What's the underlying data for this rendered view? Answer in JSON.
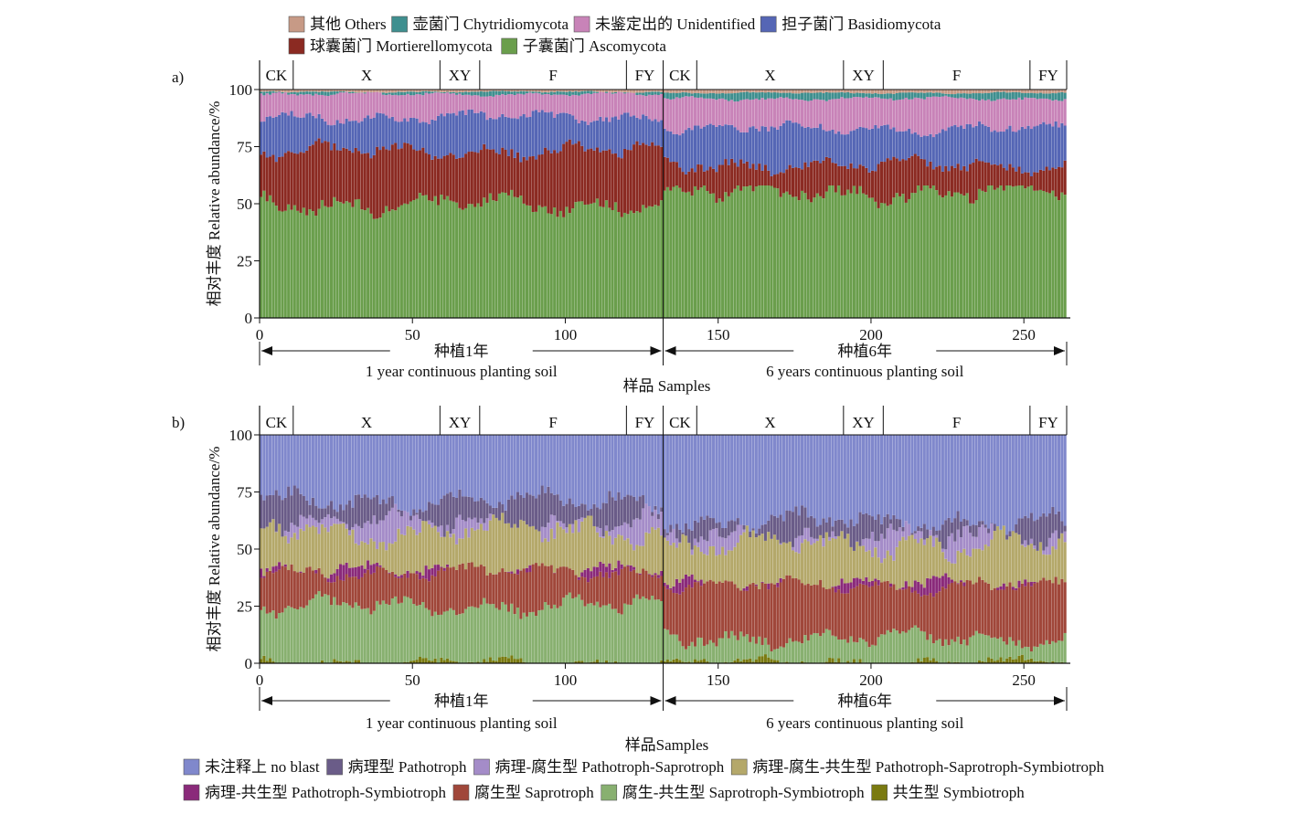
{
  "chart_data": [
    {
      "panel_label": "a)",
      "type": "bar",
      "stacked": true,
      "xlabel": "样品 Samples",
      "ylabel": "相对丰度 Relative abundance/%",
      "ylim": [
        0,
        100
      ],
      "yticks": [
        0,
        25,
        50,
        75,
        100
      ],
      "xlim": [
        0,
        264
      ],
      "xticks": [
        0,
        50,
        100,
        150,
        200,
        250
      ],
      "n_samples": 264,
      "groups": [
        {
          "label": "CK",
          "start": 0,
          "end": 11
        },
        {
          "label": "X",
          "start": 11,
          "end": 59
        },
        {
          "label": "XY",
          "start": 59,
          "end": 72
        },
        {
          "label": "F",
          "start": 72,
          "end": 120
        },
        {
          "label": "FY",
          "start": 120,
          "end": 132
        },
        {
          "label": "CK",
          "start": 132,
          "end": 143
        },
        {
          "label": "X",
          "start": 143,
          "end": 191
        },
        {
          "label": "XY",
          "start": 191,
          "end": 204
        },
        {
          "label": "F",
          "start": 204,
          "end": 252
        },
        {
          "label": "FY",
          "start": 252,
          "end": 264
        }
      ],
      "periods": [
        {
          "zh": "种植1年",
          "en": "1 year continuous planting soil",
          "start": 0,
          "end": 132
        },
        {
          "zh": "种植6年",
          "en": "6 years continuous planting soil",
          "start": 132,
          "end": 264
        }
      ],
      "legend": [
        {
          "name": "其他 Others",
          "color": "#c79a86"
        },
        {
          "name": "壶菌门 Chytridiomycota",
          "color": "#3f8f8f"
        },
        {
          "name": "未鉴定出的 Unidentified",
          "color": "#c883b8"
        },
        {
          "name": "担子菌门 Basidiomycota",
          "color": "#5566b5"
        },
        {
          "name": "球囊菌门 Mortierellomycota",
          "color": "#8b2a22"
        },
        {
          "name": "子囊菌门 Ascomycota",
          "color": "#6a9e4c"
        }
      ],
      "stack_order_bottom_to_top": [
        "子囊菌门 Ascomycota",
        "球囊菌门 Mortierellomycota",
        "担子菌门 Basidiomycota",
        "未鉴定出的 Unidentified",
        "壶菌门 Chytridiomycota",
        "其他 Others"
      ],
      "cumulative_boundaries": [
        {
          "series": "子囊菌门 Ascomycota",
          "period_1yr_mean": 50,
          "period_6yr_mean": 55,
          "range": [
            27,
            58
          ]
        },
        {
          "series": "球囊菌门 Mortierellomycota",
          "period_1yr_mean": 73,
          "period_6yr_mean": 67,
          "range": [
            60,
            84
          ]
        },
        {
          "series": "担子菌门 Basidiomycota",
          "period_1yr_mean": 88,
          "period_6yr_mean": 83,
          "range": [
            76,
            94
          ]
        },
        {
          "series": "未鉴定出的 Unidentified",
          "period_1yr_mean": 98,
          "period_6yr_mean": 96,
          "range": [
            93,
            99
          ]
        },
        {
          "series": "壶菌门 Chytridiomycota",
          "period_1yr_mean": 99,
          "period_6yr_mean": 98.5,
          "range": [
            97,
            99.5
          ]
        },
        {
          "series": "其他 Others",
          "period_1yr_mean": 100,
          "period_6yr_mean": 100,
          "range": [
            100,
            100
          ]
        }
      ]
    },
    {
      "panel_label": "b)",
      "type": "bar",
      "stacked": true,
      "xlabel": "样品Samples",
      "ylabel": "相对丰度 Relative abundance/%",
      "ylim": [
        0,
        100
      ],
      "yticks": [
        0,
        25,
        50,
        75,
        100
      ],
      "xlim": [
        0,
        264
      ],
      "xticks": [
        0,
        50,
        100,
        150,
        200,
        250
      ],
      "n_samples": 264,
      "groups": [
        {
          "label": "CK",
          "start": 0,
          "end": 11
        },
        {
          "label": "X",
          "start": 11,
          "end": 59
        },
        {
          "label": "XY",
          "start": 59,
          "end": 72
        },
        {
          "label": "F",
          "start": 72,
          "end": 120
        },
        {
          "label": "FY",
          "start": 120,
          "end": 132
        },
        {
          "label": "CK",
          "start": 132,
          "end": 143
        },
        {
          "label": "X",
          "start": 143,
          "end": 191
        },
        {
          "label": "XY",
          "start": 191,
          "end": 204
        },
        {
          "label": "F",
          "start": 204,
          "end": 252
        },
        {
          "label": "FY",
          "start": 252,
          "end": 264
        }
      ],
      "periods": [
        {
          "zh": "种植1年",
          "en": "1 year continuous planting soil",
          "start": 0,
          "end": 132
        },
        {
          "zh": "种植6年",
          "en": "6 years continuous planting soil",
          "start": 132,
          "end": 264
        }
      ],
      "legend": [
        {
          "name": "未注释上 no blast",
          "color": "#8088cc"
        },
        {
          "name": "病理型 Pathotroph",
          "color": "#6a5c88"
        },
        {
          "name": "病理-腐生型 Pathotroph-Saprotroph",
          "color": "#a48cc8"
        },
        {
          "name": "病理-腐生-共生型 Pathotroph-Saprotroph-Symbiotroph",
          "color": "#b4a86a"
        },
        {
          "name": "病理-共生型 Pathotroph-Symbiotroph",
          "color": "#8a2a7a"
        },
        {
          "name": "腐生型 Saprotroph",
          "color": "#a0473a"
        },
        {
          "name": "腐生-共生型 Saprotroph-Symbiotroph",
          "color": "#88b070"
        },
        {
          "name": "共生型 Symbiotroph",
          "color": "#7a7a10"
        }
      ],
      "stack_order_bottom_to_top": [
        "共生型 Symbiotroph",
        "腐生-共生型 Saprotroph-Symbiotroph",
        "腐生型 Saprotroph",
        "病理-共生型 Pathotroph-Symbiotroph",
        "病理-腐生-共生型 Pathotroph-Saprotroph-Symbiotroph",
        "病理-腐生型 Pathotroph-Saprotroph",
        "病理型 Pathotroph",
        "未注释上 no blast"
      ],
      "cumulative_boundaries": [
        {
          "series": "共生型 Symbiotroph",
          "period_1yr_mean": 0.5,
          "period_6yr_mean": 0.5,
          "range": [
            0,
            15
          ]
        },
        {
          "series": "腐生-共生型 Saprotroph-Symbiotroph",
          "period_1yr_mean": 25,
          "period_6yr_mean": 11,
          "range": [
            5,
            33
          ]
        },
        {
          "series": "腐生型 Saprotroph",
          "period_1yr_mean": 40,
          "period_6yr_mean": 34,
          "range": [
            24,
            47
          ]
        },
        {
          "series": "病理-共生型 Pathotroph-Symbiotroph",
          "period_1yr_mean": 40.3,
          "period_6yr_mean": 34.3,
          "range": [
            24,
            48
          ]
        },
        {
          "series": "病理-腐生-共生型 Pathotroph-Saprotroph-Symbiotroph",
          "period_1yr_mean": 58,
          "period_6yr_mean": 52,
          "range": [
            40,
            80
          ]
        },
        {
          "series": "病理-腐生型 Pathotroph-Saprotroph",
          "period_1yr_mean": 61,
          "period_6yr_mean": 55,
          "range": [
            45,
            82
          ]
        },
        {
          "series": "病理型 Pathotroph",
          "period_1yr_mean": 71,
          "period_6yr_mean": 62,
          "range": [
            55,
            86
          ]
        },
        {
          "series": "未注释上 no blast",
          "period_1yr_mean": 100,
          "period_6yr_mean": 100,
          "range": [
            100,
            100
          ]
        }
      ]
    }
  ]
}
